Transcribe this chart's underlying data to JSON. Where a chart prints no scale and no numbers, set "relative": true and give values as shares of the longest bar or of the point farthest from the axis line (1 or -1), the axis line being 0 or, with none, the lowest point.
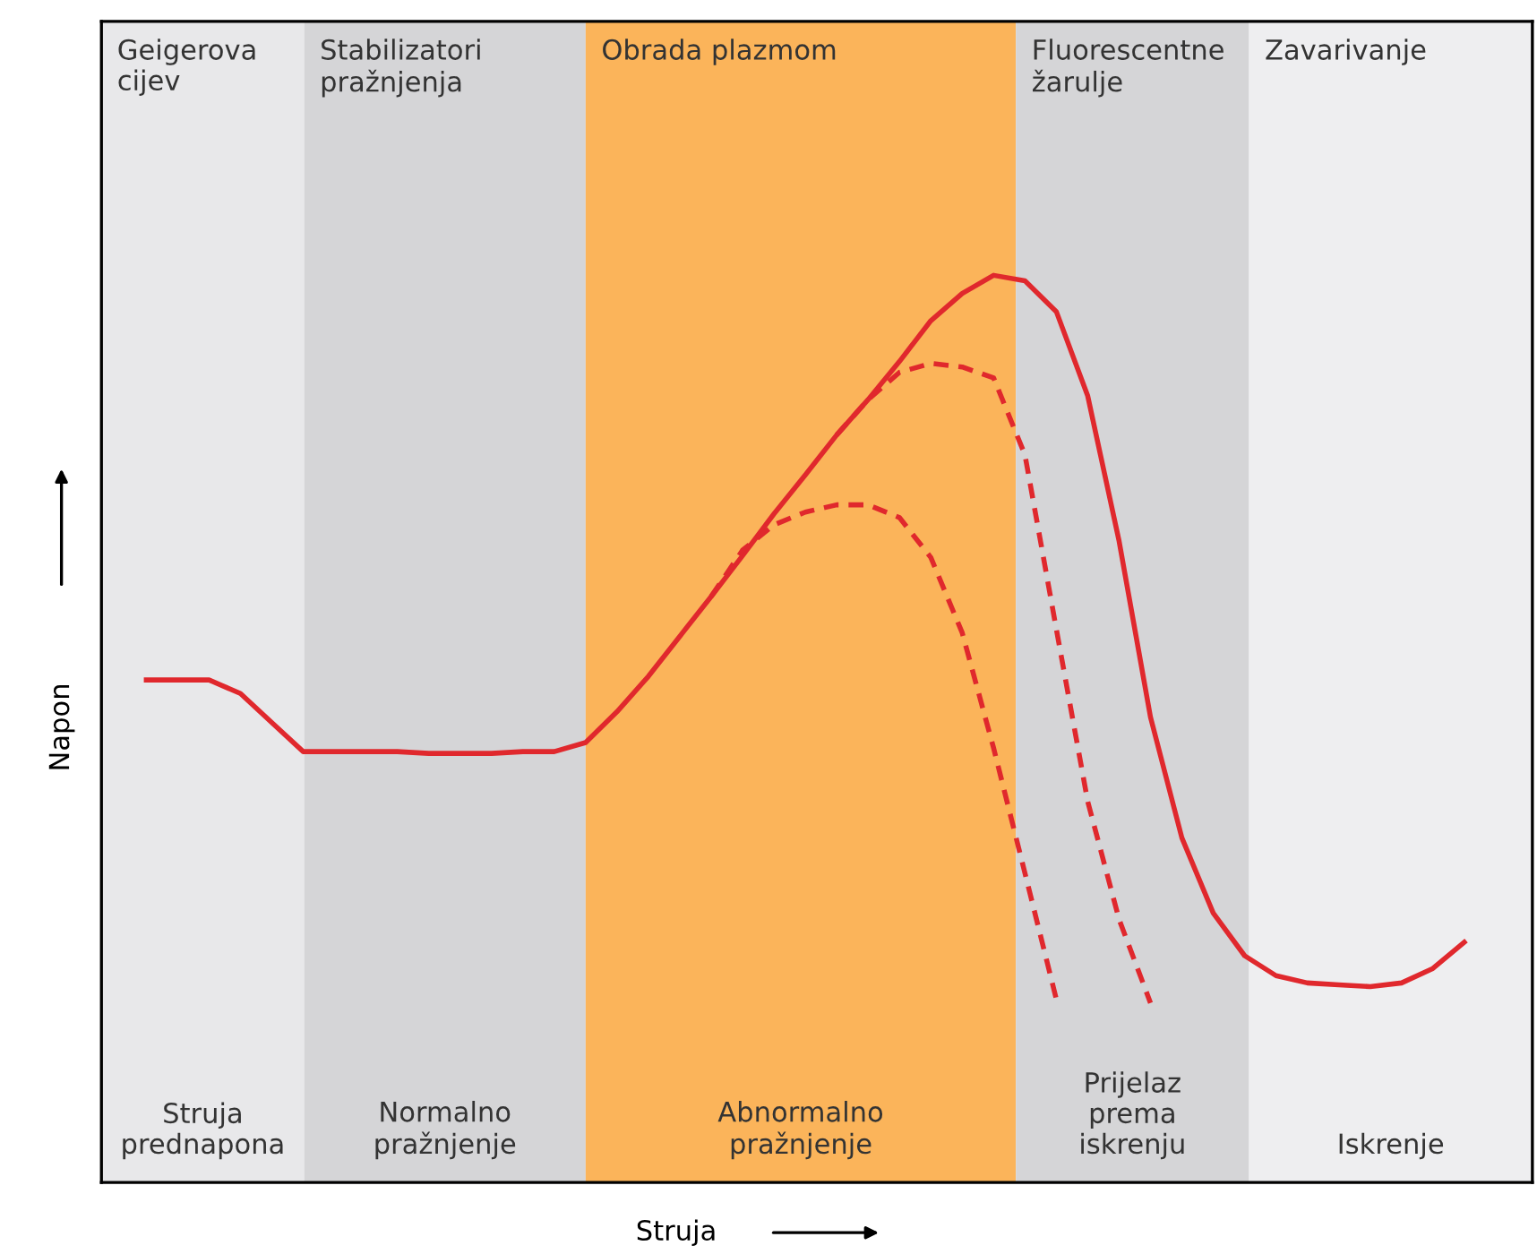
{
  "chart_data": {
    "type": "line",
    "relative": true,
    "xlabel": "Struja",
    "ylabel": "Napon",
    "categories": [
      null,
      null,
      null,
      null,
      null,
      null,
      null,
      null,
      null,
      null,
      null,
      null,
      null,
      null,
      null,
      null,
      null,
      null,
      null,
      null,
      null,
      null,
      null,
      null,
      null,
      null,
      null,
      null,
      null,
      null,
      null,
      null,
      null,
      null,
      null,
      null,
      null,
      null,
      null,
      null,
      null,
      null,
      null
    ],
    "series": [
      {
        "color": "#e0282d",
        "line_style": "solid",
        "values": [
          0.554,
          0.554,
          0.554,
          0.539,
          0.507,
          0.475,
          0.475,
          0.475,
          0.475,
          0.473,
          0.473,
          0.473,
          0.475,
          0.475,
          0.485,
          0.519,
          0.558,
          0.602,
          0.646,
          0.691,
          0.737,
          0.78,
          0.824,
          0.863,
          0.905,
          0.95,
          0.98,
          1.0,
          0.994,
          0.96,
          0.867,
          0.707,
          0.513,
          0.38,
          0.297,
          0.25,
          0.228,
          0.22,
          0.218,
          0.216,
          0.22,
          0.236,
          0.265
        ]
      },
      {
        "color": "#e0282d",
        "line_style": "dashed",
        "values": [
          null,
          null,
          null,
          null,
          null,
          null,
          null,
          null,
          null,
          null,
          null,
          null,
          null,
          null,
          null,
          null,
          null,
          null,
          null,
          null,
          null,
          null,
          0.824,
          0.863,
          0.893,
          0.903,
          0.899,
          0.887,
          0.802,
          0.61,
          0.42,
          0.29,
          0.198,
          null,
          null,
          null,
          null,
          null,
          null,
          null,
          null,
          null,
          null
        ]
      },
      {
        "color": "#e0282d",
        "line_style": "dashed",
        "values": [
          null,
          null,
          null,
          null,
          null,
          null,
          null,
          null,
          null,
          null,
          null,
          null,
          null,
          null,
          null,
          null,
          null,
          null,
          0.646,
          0.697,
          0.725,
          0.739,
          0.747,
          0.747,
          0.733,
          0.689,
          0.606,
          0.479,
          0.341,
          0.202,
          null,
          null,
          null,
          null,
          null,
          null,
          null,
          null,
          null,
          null,
          null,
          null,
          null
        ]
      }
    ],
    "annotations": [
      "Geigerova\ncijev",
      "Stabilizatori\npražnjenja",
      "Obrada plazmom",
      "Fluorescentne\nžarulje",
      "Zavarivanje",
      "Struja\nprednapona",
      "Normalno\npražnjenje",
      "Abnormalno\npražnjenje",
      "Prijelaz\nprema\niskrenju",
      "Iskrenje"
    ],
    "marker": "none",
    "legend": false
  }
}
